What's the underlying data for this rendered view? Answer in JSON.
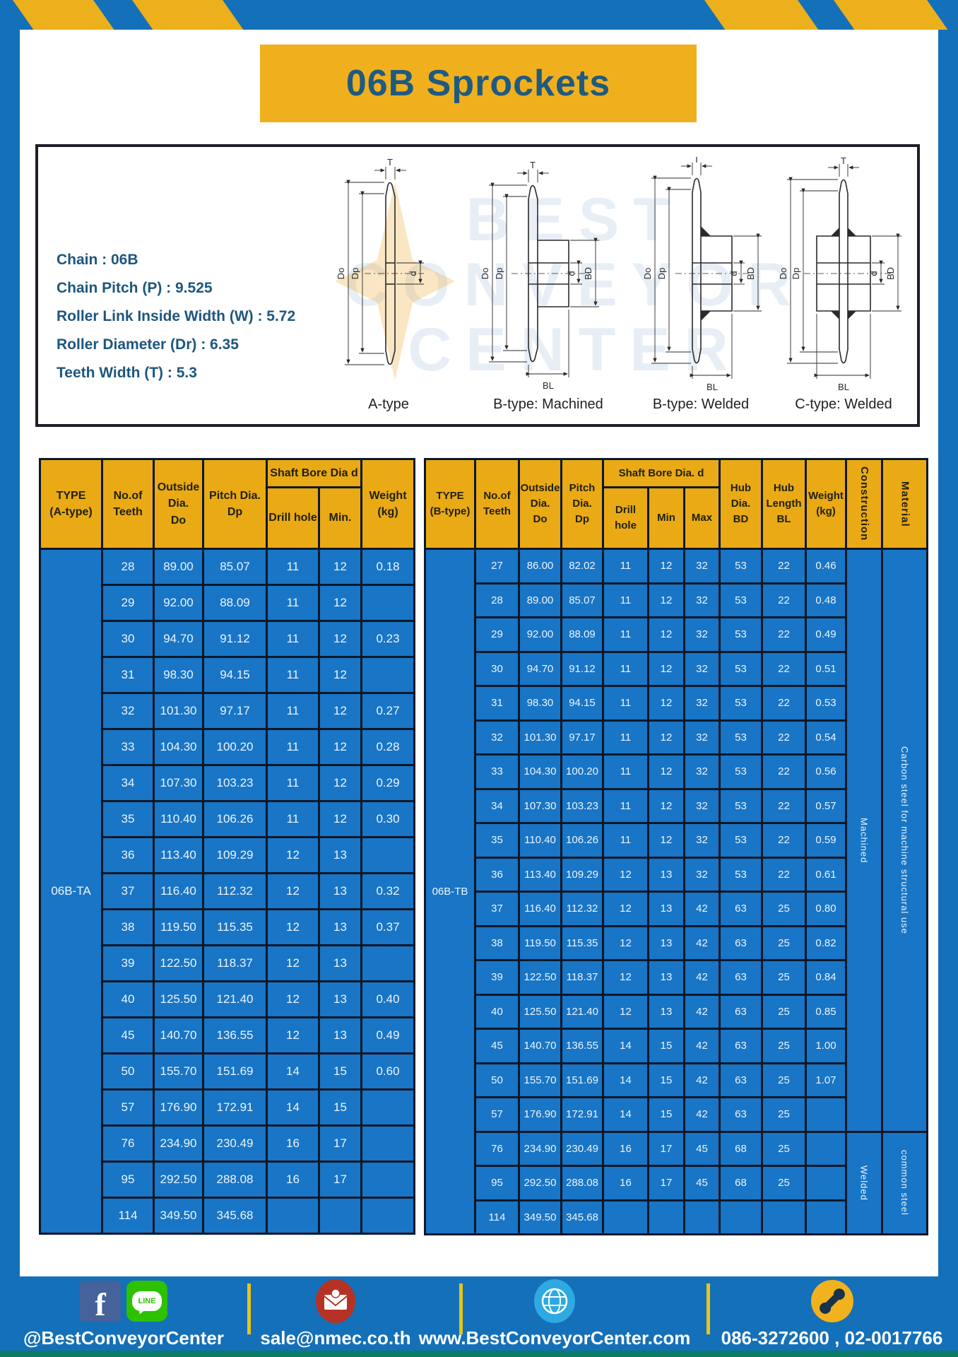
{
  "title": "06B Sprockets",
  "specs": {
    "lines": [
      "Chain  : 06B",
      "Chain Pitch (P)  :  9.525",
      "Roller Link Inside Width (W)  :  5.72",
      "Roller Diameter (Dr)  : 6.35",
      "Teeth Width (T)  :  5.3"
    ]
  },
  "diagram": {
    "captions": [
      "A-type",
      "B-type: Machined",
      "B-type: Welded",
      "C-type: Welded"
    ],
    "dims": {
      "T": "T",
      "Do": "Do",
      "Dp": "Dp",
      "d": "d",
      "BD": "BD",
      "BL": "BL"
    },
    "watermark": [
      "BEST",
      "CONVEYOR",
      "CENTER"
    ]
  },
  "table_a": {
    "type_label": "06B-TA",
    "headers": {
      "type": "TYPE\n(A-type)",
      "teeth": "No.of\nTeeth",
      "outside": "Outside\nDia.\nDo",
      "pitch": "Pitch Dia.\nDp",
      "shaft_bore": "Shaft Bore Dia d",
      "drill": "Drill hole",
      "min": "Min.",
      "weight": "Weight\n(kg)"
    },
    "rows": [
      [
        "28",
        "89.00",
        "85.07",
        "11",
        "12",
        "0.18"
      ],
      [
        "29",
        "92.00",
        "88.09",
        "11",
        "12",
        ""
      ],
      [
        "30",
        "94.70",
        "91.12",
        "11",
        "12",
        "0.23"
      ],
      [
        "31",
        "98.30",
        "94.15",
        "11",
        "12",
        ""
      ],
      [
        "32",
        "101.30",
        "97.17",
        "11",
        "12",
        "0.27"
      ],
      [
        "33",
        "104.30",
        "100.20",
        "11",
        "12",
        "0.28"
      ],
      [
        "34",
        "107.30",
        "103.23",
        "11",
        "12",
        "0.29"
      ],
      [
        "35",
        "110.40",
        "106.26",
        "11",
        "12",
        "0.30"
      ],
      [
        "36",
        "113.40",
        "109.29",
        "12",
        "13",
        ""
      ],
      [
        "37",
        "116.40",
        "112.32",
        "12",
        "13",
        "0.32"
      ],
      [
        "38",
        "119.50",
        "115.35",
        "12",
        "13",
        "0.37"
      ],
      [
        "39",
        "122.50",
        "118.37",
        "12",
        "13",
        ""
      ],
      [
        "40",
        "125.50",
        "121.40",
        "12",
        "13",
        "0.40"
      ],
      [
        "45",
        "140.70",
        "136.55",
        "12",
        "13",
        "0.49"
      ],
      [
        "50",
        "155.70",
        "151.69",
        "14",
        "15",
        "0.60"
      ],
      [
        "57",
        "176.90",
        "172.91",
        "14",
        "15",
        ""
      ],
      [
        "76",
        "234.90",
        "230.49",
        "16",
        "17",
        ""
      ],
      [
        "95",
        "292.50",
        "288.08",
        "16",
        "17",
        ""
      ],
      [
        "114",
        "349.50",
        "345.68",
        "",
        "",
        ""
      ]
    ]
  },
  "table_b": {
    "type_label": "06B-TB",
    "headers": {
      "type": "TYPE\n(B-type)",
      "teeth": "No.of\nTeeth",
      "outside": "Outside\nDia.\nDo",
      "pitch": "Pitch\nDia.\nDp",
      "shaft_bore": "Shaft Bore Dia. d",
      "drill": "Drill hole",
      "min": "Min",
      "max": "Max",
      "hub_dia": "Hub\nDia.\nBD",
      "hub_len": "Hub\nLength\nBL",
      "weight": "Weight\n(kg)",
      "construction": "Construction",
      "material": "Material"
    },
    "rows": [
      [
        "27",
        "86.00",
        "82.02",
        "11",
        "12",
        "32",
        "53",
        "22",
        "0.46"
      ],
      [
        "28",
        "89.00",
        "85.07",
        "11",
        "12",
        "32",
        "53",
        "22",
        "0.48"
      ],
      [
        "29",
        "92.00",
        "88.09",
        "11",
        "12",
        "32",
        "53",
        "22",
        "0.49"
      ],
      [
        "30",
        "94.70",
        "91.12",
        "11",
        "12",
        "32",
        "53",
        "22",
        "0.51"
      ],
      [
        "31",
        "98.30",
        "94.15",
        "11",
        "12",
        "32",
        "53",
        "22",
        "0.53"
      ],
      [
        "32",
        "101.30",
        "97.17",
        "11",
        "12",
        "32",
        "53",
        "22",
        "0.54"
      ],
      [
        "33",
        "104.30",
        "100.20",
        "11",
        "12",
        "32",
        "53",
        "22",
        "0.56"
      ],
      [
        "34",
        "107.30",
        "103.23",
        "11",
        "12",
        "32",
        "53",
        "22",
        "0.57"
      ],
      [
        "35",
        "110.40",
        "106.26",
        "11",
        "12",
        "32",
        "53",
        "22",
        "0.59"
      ],
      [
        "36",
        "113.40",
        "109.29",
        "12",
        "13",
        "32",
        "53",
        "22",
        "0.61"
      ],
      [
        "37",
        "116.40",
        "112.32",
        "12",
        "13",
        "42",
        "63",
        "25",
        "0.80"
      ],
      [
        "38",
        "119.50",
        "115.35",
        "12",
        "13",
        "42",
        "63",
        "25",
        "0.82"
      ],
      [
        "39",
        "122.50",
        "118.37",
        "12",
        "13",
        "42",
        "63",
        "25",
        "0.84"
      ],
      [
        "40",
        "125.50",
        "121.40",
        "12",
        "13",
        "42",
        "63",
        "25",
        "0.85"
      ],
      [
        "45",
        "140.70",
        "136.55",
        "14",
        "15",
        "42",
        "63",
        "25",
        "1.00"
      ],
      [
        "50",
        "155.70",
        "151.69",
        "14",
        "15",
        "42",
        "63",
        "25",
        "1.07"
      ],
      [
        "57",
        "176.90",
        "172.91",
        "14",
        "15",
        "42",
        "63",
        "25",
        ""
      ],
      [
        "76",
        "234.90",
        "230.49",
        "16",
        "17",
        "45",
        "68",
        "25",
        ""
      ],
      [
        "95",
        "292.50",
        "288.08",
        "16",
        "17",
        "45",
        "68",
        "25",
        ""
      ],
      [
        "114",
        "349.50",
        "345.68",
        "",
        "",
        "",
        "",
        "",
        ""
      ]
    ],
    "construction_groups": [
      {
        "label": "Machined",
        "span": 17
      },
      {
        "label": "Welded",
        "span": 3
      }
    ],
    "material_groups": [
      {
        "label": "Carbon steel for machine structural use",
        "span": 17
      },
      {
        "label": "common steel",
        "span": 3
      }
    ]
  },
  "footer": {
    "social": "@BestConveyorCenter",
    "line_label": "LINE",
    "email": "sale@nmec.co.th",
    "website": "www.BestConveyorCenter.com",
    "phone": "086-3272600 , 02-0017766"
  },
  "colors": {
    "page_blue": "#1470b8",
    "accent_yellow": "#edb01d",
    "cell_blue": "#1975c5",
    "header_yellow": "#eaaa15",
    "title_text": "#1f5a80",
    "border_dark": "#0c1828",
    "bottom_strip": "#0d7b67"
  }
}
